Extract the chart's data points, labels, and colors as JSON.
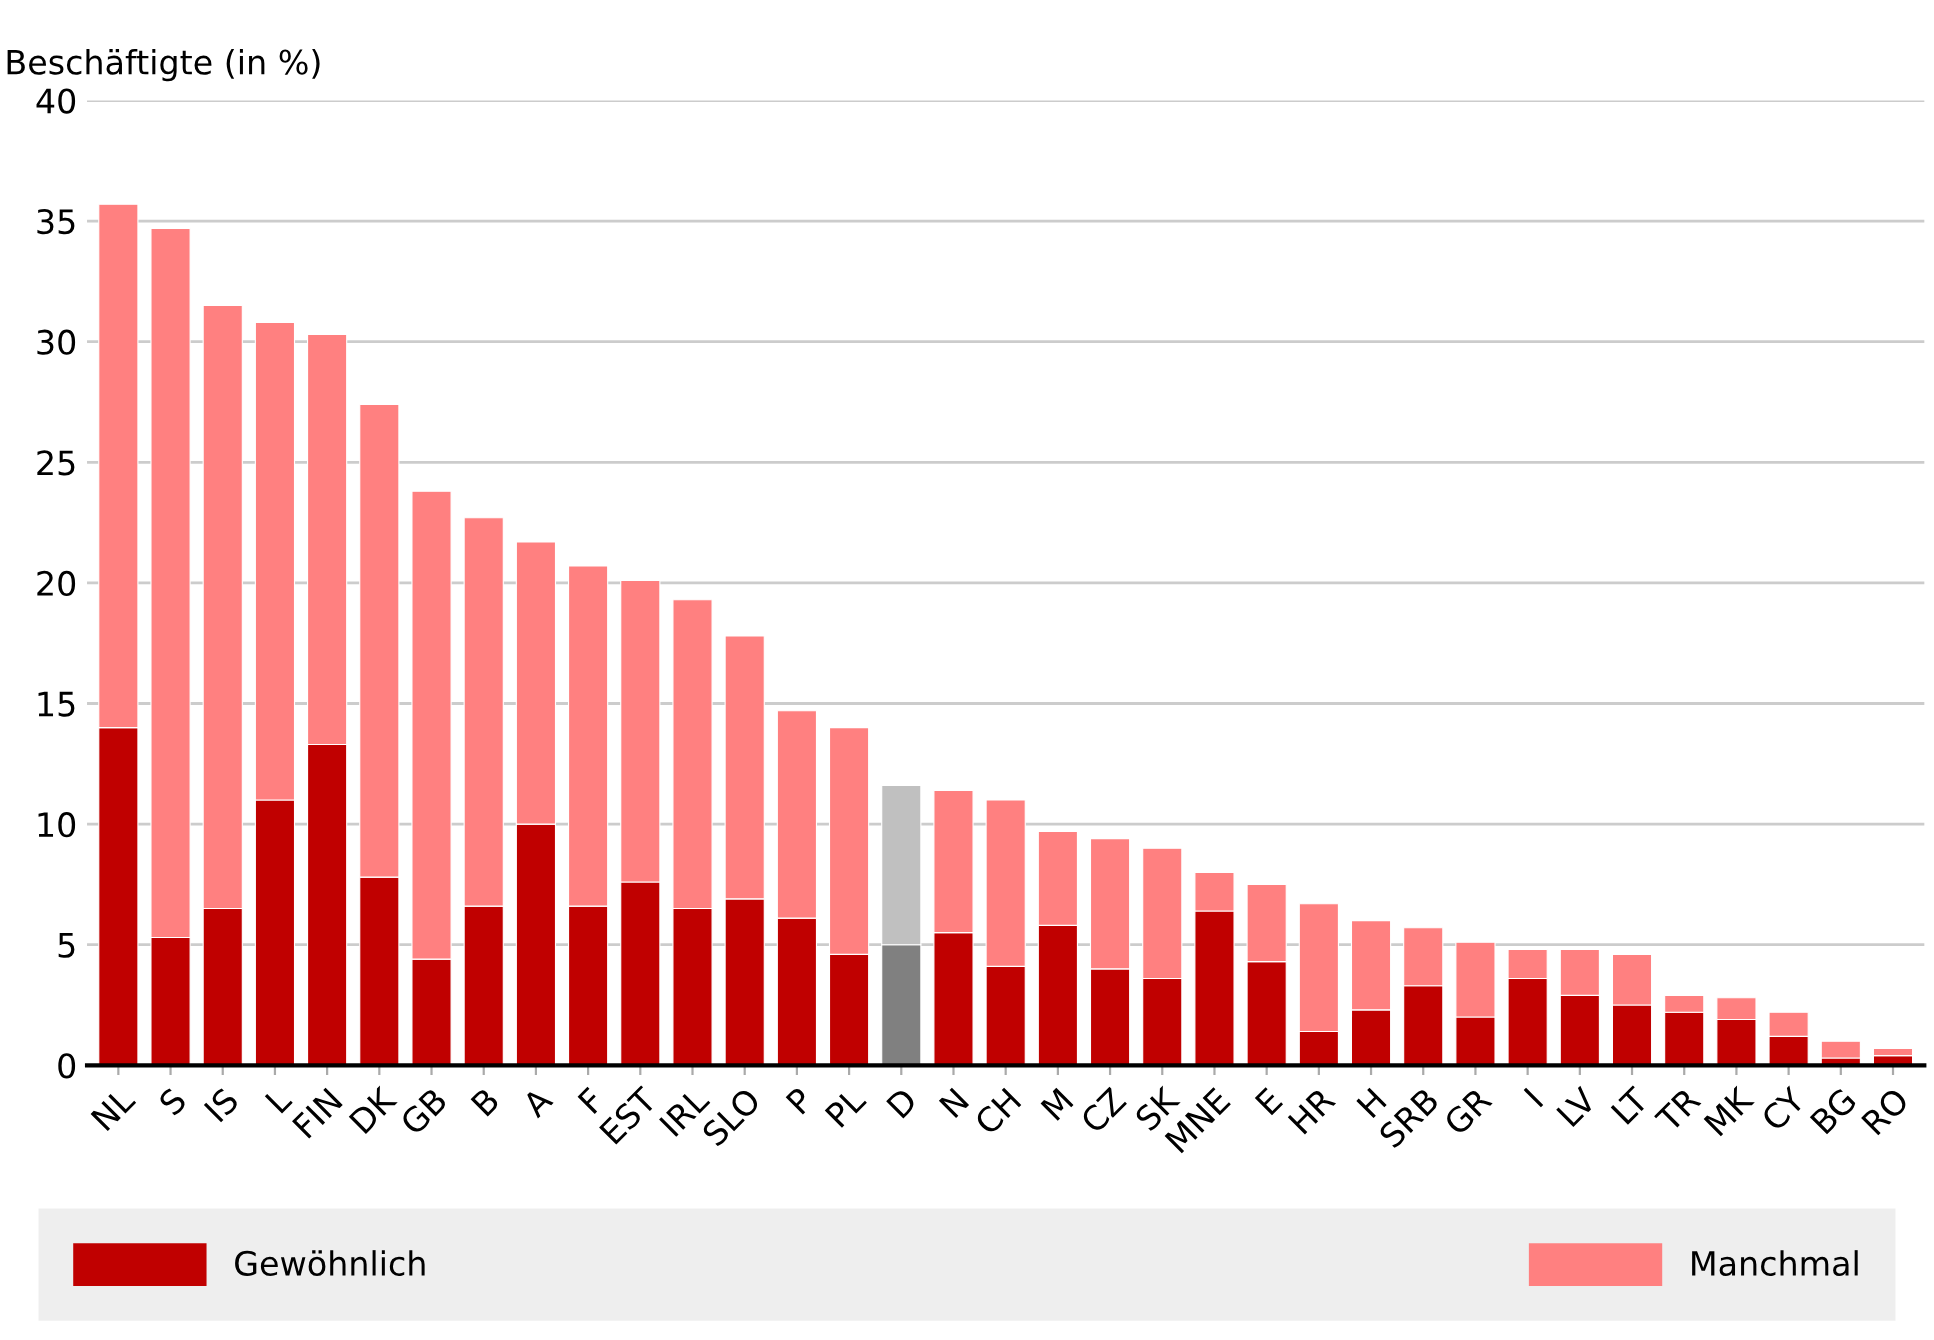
{
  "chart_data": {
    "type": "bar",
    "stacked": true,
    "ylabel": "Beschäftigte (in %)",
    "categories": [
      "NL",
      "S",
      "IS",
      "L",
      "FIN",
      "DK",
      "GB",
      "B",
      "A",
      "F",
      "EST",
      "IRL",
      "SLO",
      "P",
      "PL",
      "D",
      "N",
      "CH",
      "M",
      "CZ",
      "SK",
      "MNE",
      "E",
      "HR",
      "H",
      "SRB",
      "GR",
      "I",
      "LV",
      "LT",
      "TR",
      "MK",
      "CY",
      "BG",
      "RO"
    ],
    "series": [
      {
        "name": "Gewöhnlich",
        "color": "#c00000",
        "colors": [
          "#c00000",
          "#c00000",
          "#c00000",
          "#c00000",
          "#c00000",
          "#c00000",
          "#c00000",
          "#c00000",
          "#c00000",
          "#c00000",
          "#c00000",
          "#c00000",
          "#c00000",
          "#c00000",
          "#c00000",
          "#808080",
          "#c00000",
          "#c00000",
          "#c00000",
          "#c00000",
          "#c00000",
          "#c00000",
          "#c00000",
          "#c00000",
          "#c00000",
          "#c00000",
          "#c00000",
          "#c00000",
          "#c00000",
          "#c00000",
          "#c00000",
          "#c00000",
          "#c00000",
          "#c00000",
          "#c00000"
        ],
        "values": [
          14.0,
          5.3,
          6.5,
          11.0,
          13.3,
          7.8,
          4.4,
          6.6,
          10.0,
          6.6,
          7.6,
          6.5,
          6.9,
          6.1,
          4.6,
          5.0,
          5.5,
          4.1,
          5.8,
          4.0,
          3.6,
          6.4,
          4.3,
          1.4,
          2.3,
          3.3,
          2.0,
          3.6,
          2.9,
          2.5,
          2.2,
          1.9,
          1.2,
          0.3,
          0.4
        ]
      },
      {
        "name": "Manchmal",
        "color": "#ff8080",
        "colors": [
          "#ff8080",
          "#ff8080",
          "#ff8080",
          "#ff8080",
          "#ff8080",
          "#ff8080",
          "#ff8080",
          "#ff8080",
          "#ff8080",
          "#ff8080",
          "#ff8080",
          "#ff8080",
          "#ff8080",
          "#ff8080",
          "#ff8080",
          "#c0c0c0",
          "#ff8080",
          "#ff8080",
          "#ff8080",
          "#ff8080",
          "#ff8080",
          "#ff8080",
          "#ff8080",
          "#ff8080",
          "#ff8080",
          "#ff8080",
          "#ff8080",
          "#ff8080",
          "#ff8080",
          "#ff8080",
          "#ff8080",
          "#ff8080",
          "#ff8080",
          "#ff8080",
          "#ff8080"
        ],
        "values": [
          21.7,
          29.4,
          25.0,
          19.8,
          17.0,
          19.6,
          19.4,
          16.1,
          11.7,
          14.1,
          12.5,
          12.8,
          10.9,
          8.6,
          9.4,
          6.6,
          5.9,
          6.9,
          3.9,
          5.4,
          5.4,
          1.6,
          3.2,
          5.3,
          3.7,
          2.4,
          3.1,
          1.2,
          1.9,
          2.1,
          0.7,
          0.9,
          1.0,
          0.7,
          0.3
        ]
      }
    ],
    "ylim": [
      0,
      40
    ],
    "yticks": [
      0,
      5,
      10,
      15,
      20,
      25,
      30,
      35,
      40
    ],
    "grid": "y",
    "legend": "bottom"
  }
}
